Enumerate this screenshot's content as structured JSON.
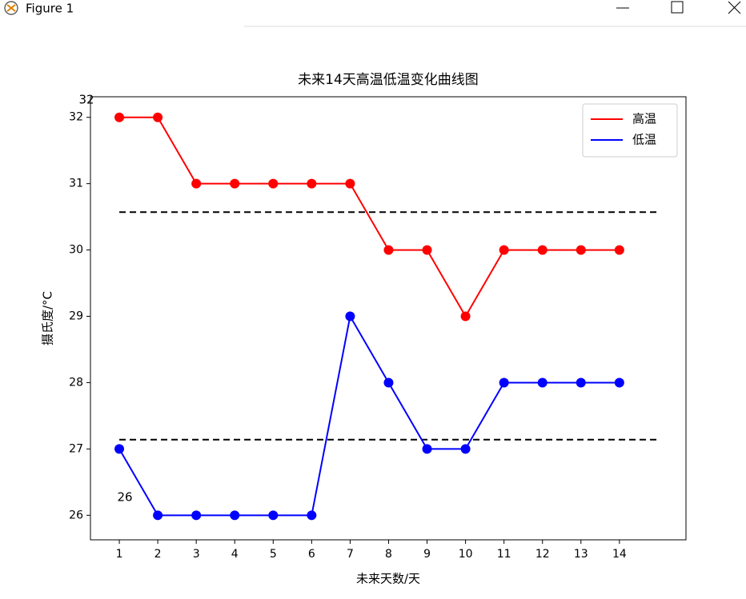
{
  "window": {
    "title": "Figure 1"
  },
  "chart_data": {
    "type": "line",
    "title": "未来14天高温低温变化曲线图",
    "x_label": "未来天数/天",
    "y_label": "摄氏度/°C",
    "x": [
      1,
      2,
      3,
      4,
      5,
      6,
      7,
      8,
      9,
      10,
      11,
      12,
      13,
      14
    ],
    "series": [
      {
        "name": "高温",
        "color": "#ff0000",
        "values": [
          32,
          32,
          31,
          31,
          31,
          31,
          31,
          30,
          30,
          29,
          30,
          30,
          30,
          30
        ]
      },
      {
        "name": "低温",
        "color": "#0000ff",
        "values": [
          27,
          26,
          26,
          26,
          26,
          26,
          29,
          28,
          27,
          27,
          28,
          28,
          28,
          28
        ]
      }
    ],
    "mean_lines": [
      {
        "y": 30.57,
        "xmin": 1,
        "xmax": 15,
        "color": "#000000"
      },
      {
        "y": 27.14,
        "xmin": 1,
        "xmax": 15,
        "color": "#000000"
      }
    ],
    "annotations": [
      "32",
      "26"
    ],
    "xlim": [
      0.25,
      15.73
    ],
    "ylim": [
      25.63,
      32.31
    ],
    "xticks": [
      1,
      2,
      3,
      4,
      5,
      6,
      7,
      8,
      9,
      10,
      11,
      12,
      13,
      14
    ],
    "yticks": [
      26,
      27,
      28,
      29,
      30,
      31,
      32
    ],
    "legend": "upper right"
  }
}
